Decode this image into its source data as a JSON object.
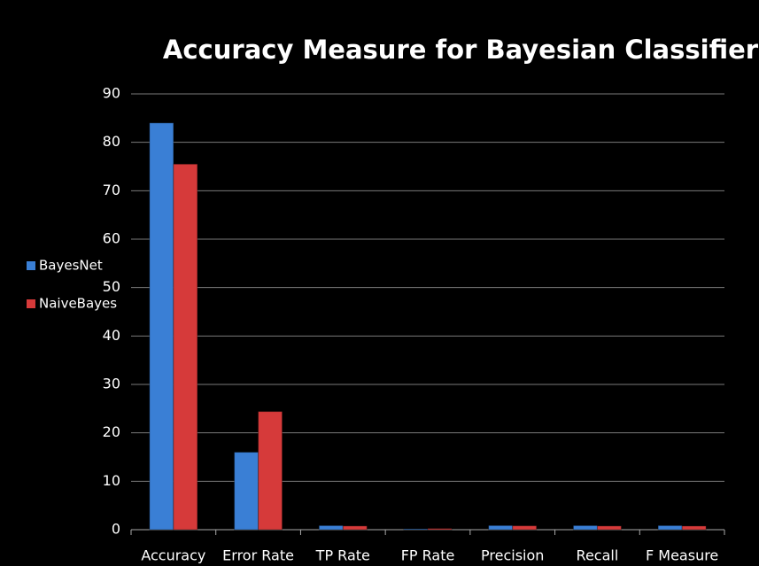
{
  "chart_data": {
    "type": "bar",
    "title": "Accuracy Measure for Bayesian Classifier",
    "categories": [
      "Accuracy",
      "Error Rate",
      "TP Rate",
      "FP Rate",
      "Precision",
      "Recall",
      "F Measure"
    ],
    "series": [
      {
        "name": "BayesNet",
        "color": "#3a7fd5",
        "values": [
          84,
          16,
          0.84,
          0.16,
          0.85,
          0.84,
          0.84
        ]
      },
      {
        "name": "NaiveBayes",
        "color": "#d63a3a",
        "values": [
          75.5,
          24.4,
          0.76,
          0.24,
          0.8,
          0.76,
          0.75
        ]
      }
    ],
    "ylim": [
      0,
      90
    ],
    "yticks": [
      0,
      10,
      20,
      30,
      40,
      50,
      60,
      70,
      80,
      90
    ],
    "grid": true,
    "legend": "left"
  }
}
